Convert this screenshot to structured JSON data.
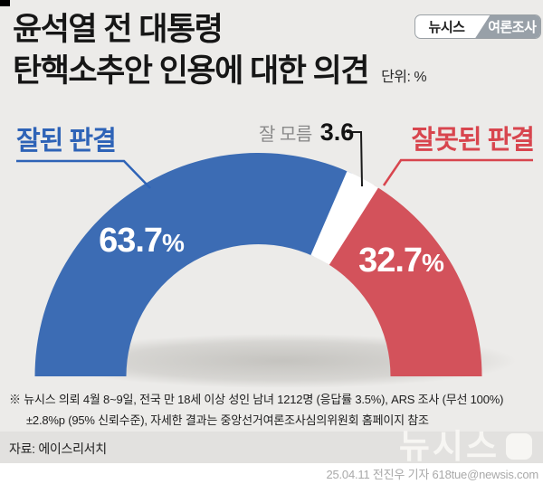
{
  "header": {
    "title_line1": "윤석열 전 대통령",
    "title_line2": "탄핵소추안 인용에 대한 의견",
    "unit_label": "단위: %",
    "badge": {
      "brand": "뉴시스",
      "category": "여론조사"
    }
  },
  "chart_data": {
    "type": "pie",
    "subtype": "half-donut",
    "title": "윤석열 전 대통령 탄핵소추안 인용에 대한 의견",
    "unit": "%",
    "unit_sign": "%",
    "start_angle_deg": 180,
    "end_angle_deg": 0,
    "separator_deg": 1.3,
    "legend_position": "callout-labels",
    "segments": [
      {
        "label": "잘된 판결",
        "value": 63.7,
        "value_label": "63.7",
        "color": "#3c6cb4",
        "text_color": "#2e63b7"
      },
      {
        "label": "잘 모름",
        "value": 3.6,
        "value_label": "3.6",
        "color": "#ffffff",
        "text_color": "#8a8a8a"
      },
      {
        "label": "잘못된 판결",
        "value": 32.7,
        "value_label": "32.7",
        "color": "#d3525b",
        "text_color": "#d8454e"
      }
    ]
  },
  "notes": {
    "line1": "※ 뉴시스 의뢰 4월 8~9일, 전국 만 18세 이상 성인 남녀 1212명 (응답률 3.5%), ARS 조사 (무선 100%)",
    "line2": "±2.8%p (95% 신뢰수준), 자세한 결과는 중앙선거여론조사심의위원회 홈페이지 참조",
    "source": "자료: 에이스리서치"
  },
  "footer": {
    "credit": "25.04.11 전진우 기자 618tue@newsis.com",
    "watermark": "뉴시스"
  },
  "colors": {
    "background": "#ecebe9",
    "band": "#e2e1df",
    "blue": "#3c6cb4",
    "red": "#d3525b",
    "badge_gray": "#98a0a8"
  }
}
